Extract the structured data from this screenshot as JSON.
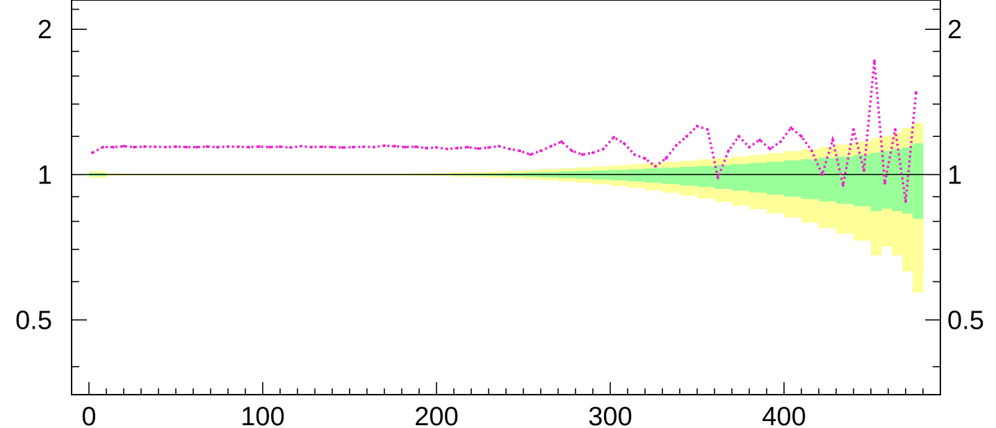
{
  "chart_data": {
    "type": "line",
    "title": "",
    "xlabel": "",
    "ylabel": "",
    "xlim": [
      -10,
      490
    ],
    "ylim": [
      0.35,
      2.3
    ],
    "y_scale": "log",
    "x_ticks": [
      0,
      100,
      200,
      300,
      400
    ],
    "x_tick_labels": [
      "0",
      "100",
      "200",
      "300",
      "400"
    ],
    "y_ticks": [
      0.5,
      1,
      2
    ],
    "y_tick_labels": [
      "0.5",
      "1",
      "2"
    ],
    "reference_line": 1,
    "grid": false,
    "legend": "none",
    "colors": {
      "outer_band": "#ffff99",
      "inner_band": "#99ff99",
      "ratio_series": "#ee22cc",
      "reference_line": "#000000",
      "frame": "#000000"
    },
    "bands": {
      "x_edges": [
        0,
        10,
        20,
        30,
        40,
        50,
        60,
        70,
        80,
        90,
        100,
        110,
        120,
        130,
        140,
        150,
        160,
        170,
        180,
        190,
        200,
        210,
        220,
        230,
        240,
        250,
        260,
        270,
        280,
        290,
        300,
        310,
        320,
        330,
        340,
        350,
        360,
        370,
        380,
        390,
        400,
        410,
        420,
        430,
        440,
        450,
        456,
        462,
        468,
        474,
        480
      ],
      "outer_low": [
        0.985,
        0.995,
        0.996,
        0.996,
        0.996,
        0.996,
        0.996,
        0.996,
        0.996,
        0.996,
        0.996,
        0.996,
        0.996,
        0.996,
        0.996,
        0.996,
        0.996,
        0.996,
        0.995,
        0.994,
        0.993,
        0.99,
        0.988,
        0.985,
        0.982,
        0.978,
        0.973,
        0.968,
        0.962,
        0.955,
        0.947,
        0.938,
        0.928,
        0.917,
        0.905,
        0.892,
        0.878,
        0.863,
        0.848,
        0.832,
        0.815,
        0.795,
        0.775,
        0.755,
        0.73,
        0.68,
        0.71,
        0.68,
        0.63,
        0.57
      ],
      "outer_high": [
        1.015,
        1.005,
        1.004,
        1.004,
        1.004,
        1.004,
        1.004,
        1.004,
        1.004,
        1.004,
        1.004,
        1.004,
        1.004,
        1.004,
        1.004,
        1.004,
        1.004,
        1.004,
        1.005,
        1.006,
        1.008,
        1.01,
        1.012,
        1.015,
        1.018,
        1.022,
        1.026,
        1.03,
        1.035,
        1.04,
        1.045,
        1.05,
        1.056,
        1.062,
        1.068,
        1.075,
        1.082,
        1.09,
        1.098,
        1.108,
        1.118,
        1.128,
        1.14,
        1.155,
        1.17,
        1.19,
        1.2,
        1.22,
        1.25,
        1.28
      ],
      "inner_low": [
        0.993,
        0.998,
        0.998,
        0.998,
        0.998,
        0.998,
        0.998,
        0.998,
        0.998,
        0.998,
        0.998,
        0.998,
        0.998,
        0.998,
        0.998,
        0.998,
        0.998,
        0.998,
        0.998,
        0.997,
        0.997,
        0.996,
        0.995,
        0.994,
        0.992,
        0.99,
        0.987,
        0.984,
        0.981,
        0.977,
        0.973,
        0.968,
        0.962,
        0.956,
        0.949,
        0.942,
        0.934,
        0.926,
        0.918,
        0.909,
        0.9,
        0.89,
        0.88,
        0.87,
        0.86,
        0.84,
        0.85,
        0.84,
        0.83,
        0.81
      ],
      "inner_high": [
        1.007,
        1.002,
        1.002,
        1.002,
        1.002,
        1.002,
        1.002,
        1.002,
        1.002,
        1.002,
        1.002,
        1.002,
        1.002,
        1.002,
        1.002,
        1.002,
        1.002,
        1.002,
        1.002,
        1.003,
        1.003,
        1.004,
        1.005,
        1.006,
        1.008,
        1.01,
        1.012,
        1.015,
        1.018,
        1.02,
        1.023,
        1.026,
        1.03,
        1.034,
        1.038,
        1.042,
        1.047,
        1.052,
        1.057,
        1.063,
        1.07,
        1.076,
        1.083,
        1.09,
        1.1,
        1.11,
        1.12,
        1.13,
        1.14,
        1.16
      ]
    },
    "series": [
      {
        "x": [
          2,
          8,
          14,
          20,
          26,
          32,
          38,
          44,
          50,
          56,
          62,
          68,
          74,
          80,
          86,
          92,
          98,
          104,
          110,
          116,
          122,
          128,
          134,
          140,
          146,
          152,
          158,
          164,
          170,
          176,
          182,
          188,
          194,
          200,
          206,
          212,
          218,
          224,
          230,
          236,
          242,
          248,
          254,
          260,
          266,
          272,
          278,
          284,
          290,
          296,
          302,
          308,
          314,
          320,
          326,
          332,
          338,
          344,
          350,
          356,
          362,
          368,
          374,
          380,
          386,
          392,
          398,
          404,
          410,
          416,
          422,
          428,
          434,
          440,
          446,
          452,
          458,
          464,
          470,
          476
        ],
        "values": [
          1.11,
          1.14,
          1.14,
          1.145,
          1.14,
          1.143,
          1.142,
          1.14,
          1.143,
          1.14,
          1.14,
          1.143,
          1.14,
          1.143,
          1.142,
          1.14,
          1.143,
          1.14,
          1.142,
          1.138,
          1.145,
          1.14,
          1.142,
          1.14,
          1.138,
          1.14,
          1.142,
          1.14,
          1.148,
          1.145,
          1.14,
          1.142,
          1.135,
          1.138,
          1.13,
          1.135,
          1.14,
          1.132,
          1.138,
          1.145,
          1.13,
          1.12,
          1.1,
          1.12,
          1.145,
          1.17,
          1.12,
          1.1,
          1.11,
          1.13,
          1.195,
          1.16,
          1.1,
          1.08,
          1.04,
          1.08,
          1.15,
          1.2,
          1.26,
          1.24,
          0.985,
          1.12,
          1.2,
          1.14,
          1.18,
          1.13,
          1.17,
          1.25,
          1.2,
          1.12,
          1.0,
          1.18,
          0.95,
          1.24,
          1.02,
          1.72,
          0.96,
          1.24,
          0.88,
          1.48
        ]
      }
    ]
  }
}
